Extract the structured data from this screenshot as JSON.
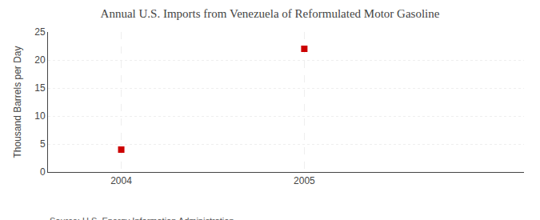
{
  "chart_data": {
    "type": "scatter",
    "title": "Annual U.S. Imports from Venezuela of Reformulated Motor Gasoline",
    "ylabel": "Thousand Barrels per Day",
    "annotations": [
      "Source: U.S. Energy Information Administration"
    ],
    "x": [
      2004,
      2005
    ],
    "values": [
      4,
      22
    ],
    "color": "#cc0000",
    "marker": "square",
    "xlim": [
      2003.6,
      2006.2
    ],
    "xticks": [
      2004,
      2005
    ],
    "ylim": [
      0,
      25
    ],
    "yticks": [
      0,
      5,
      10,
      15,
      20,
      25
    ],
    "grid": true
  }
}
